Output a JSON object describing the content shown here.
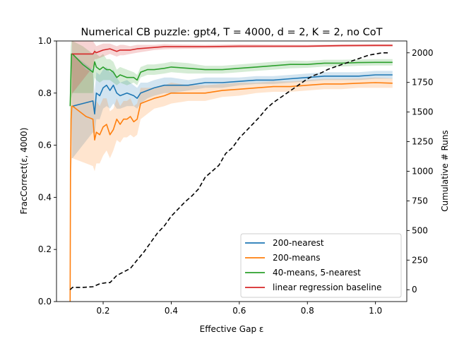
{
  "chart_data": {
    "type": "line",
    "title": "Numerical CB puzzle: gpt4, T = 4000, d = 2, K = 2, no CoT",
    "xlabel": "Effective Gap ε",
    "ylabel": "FracCorrect(ε, 4000)",
    "ylabel_right": "Cumulative # Runs",
    "xlim": [
      0.063,
      1.092
    ],
    "ylim": [
      0,
      1
    ],
    "ylim_right": [
      -100,
      2100
    ],
    "x_ticks": [
      0.2,
      0.4,
      0.6,
      0.8,
      1.0
    ],
    "x_tick_labels": [
      "0.2",
      "0.4",
      "0.6",
      "0.8",
      "1.0"
    ],
    "y_ticks": [
      0.0,
      0.2,
      0.4,
      0.6,
      0.8,
      1.0
    ],
    "y_tick_labels": [
      "0.0",
      "0.2",
      "0.4",
      "0.6",
      "0.8",
      "1.0"
    ],
    "y_right_ticks": [
      0,
      250,
      500,
      750,
      1000,
      1250,
      1500,
      1750,
      2000
    ],
    "y_right_tick_labels": [
      "0",
      "250",
      "500",
      "750",
      "1000",
      "1250",
      "1500",
      "1750",
      "2000"
    ],
    "legend_position": "lower-right",
    "series": [
      {
        "name": "200-nearest",
        "color": "#1f77b4",
        "x": [
          0.108,
          0.11,
          0.14,
          0.17,
          0.175,
          0.18,
          0.19,
          0.2,
          0.21,
          0.22,
          0.23,
          0.24,
          0.25,
          0.27,
          0.29,
          0.3,
          0.31,
          0.33,
          0.35,
          0.38,
          0.4,
          0.45,
          0.5,
          0.55,
          0.6,
          0.65,
          0.7,
          0.75,
          0.8,
          0.85,
          0.9,
          0.95,
          1.0,
          1.05
        ],
        "y": [
          0.75,
          0.75,
          0.76,
          0.77,
          0.72,
          0.8,
          0.79,
          0.82,
          0.83,
          0.81,
          0.83,
          0.8,
          0.79,
          0.8,
          0.79,
          0.78,
          0.8,
          0.81,
          0.82,
          0.83,
          0.83,
          0.83,
          0.84,
          0.84,
          0.845,
          0.85,
          0.85,
          0.855,
          0.86,
          0.865,
          0.865,
          0.865,
          0.87,
          0.87
        ],
        "lower": [
          0.55,
          0.55,
          0.6,
          0.65,
          0.64,
          0.7,
          0.7,
          0.74,
          0.75,
          0.74,
          0.76,
          0.74,
          0.74,
          0.75,
          0.75,
          0.74,
          0.76,
          0.78,
          0.79,
          0.8,
          0.8,
          0.81,
          0.82,
          0.82,
          0.83,
          0.835,
          0.835,
          0.84,
          0.845,
          0.85,
          0.85,
          0.85,
          0.855,
          0.855
        ],
        "upper": [
          0.95,
          0.95,
          0.92,
          0.89,
          0.8,
          0.88,
          0.87,
          0.89,
          0.9,
          0.88,
          0.89,
          0.86,
          0.84,
          0.85,
          0.83,
          0.82,
          0.84,
          0.84,
          0.85,
          0.86,
          0.86,
          0.85,
          0.86,
          0.86,
          0.86,
          0.865,
          0.865,
          0.87,
          0.875,
          0.88,
          0.88,
          0.88,
          0.885,
          0.885
        ]
      },
      {
        "name": "200-means",
        "color": "#ff7f0e",
        "x": [
          0.103,
          0.104,
          0.106,
          0.108,
          0.11,
          0.13,
          0.15,
          0.17,
          0.175,
          0.18,
          0.19,
          0.2,
          0.21,
          0.22,
          0.23,
          0.24,
          0.25,
          0.26,
          0.27,
          0.28,
          0.29,
          0.3,
          0.31,
          0.33,
          0.35,
          0.38,
          0.4,
          0.45,
          0.5,
          0.55,
          0.6,
          0.65,
          0.7,
          0.75,
          0.8,
          0.85,
          0.9,
          0.95,
          1.0,
          1.05
        ],
        "y": [
          0.0,
          0.5,
          0.7,
          0.75,
          0.75,
          0.73,
          0.71,
          0.7,
          0.62,
          0.65,
          0.64,
          0.67,
          0.68,
          0.64,
          0.66,
          0.7,
          0.68,
          0.7,
          0.7,
          0.71,
          0.69,
          0.7,
          0.76,
          0.77,
          0.78,
          0.79,
          0.8,
          0.8,
          0.8,
          0.81,
          0.815,
          0.82,
          0.825,
          0.825,
          0.83,
          0.835,
          0.835,
          0.838,
          0.84,
          0.838
        ],
        "lower": [
          0.0,
          0.2,
          0.5,
          0.55,
          0.55,
          0.54,
          0.53,
          0.52,
          0.5,
          0.53,
          0.53,
          0.56,
          0.58,
          0.55,
          0.58,
          0.62,
          0.61,
          0.63,
          0.63,
          0.64,
          0.63,
          0.64,
          0.7,
          0.72,
          0.74,
          0.75,
          0.76,
          0.77,
          0.77,
          0.785,
          0.79,
          0.8,
          0.805,
          0.805,
          0.81,
          0.815,
          0.815,
          0.82,
          0.82,
          0.82
        ],
        "upper": [
          0.0,
          0.8,
          0.9,
          0.95,
          0.95,
          0.92,
          0.89,
          0.88,
          0.74,
          0.77,
          0.75,
          0.78,
          0.78,
          0.73,
          0.74,
          0.78,
          0.75,
          0.77,
          0.77,
          0.78,
          0.75,
          0.76,
          0.82,
          0.82,
          0.82,
          0.83,
          0.84,
          0.83,
          0.83,
          0.835,
          0.84,
          0.84,
          0.845,
          0.845,
          0.85,
          0.855,
          0.855,
          0.856,
          0.86,
          0.856
        ]
      },
      {
        "name": "40-means, 5-nearest",
        "color": "#2ca02c",
        "x": [
          0.103,
          0.104,
          0.105,
          0.107,
          0.11,
          0.14,
          0.17,
          0.175,
          0.18,
          0.19,
          0.2,
          0.21,
          0.22,
          0.23,
          0.24,
          0.25,
          0.27,
          0.29,
          0.3,
          0.31,
          0.33,
          0.35,
          0.38,
          0.4,
          0.45,
          0.5,
          0.55,
          0.6,
          0.65,
          0.7,
          0.75,
          0.8,
          0.85,
          0.9,
          0.95,
          1.0,
          1.05
        ],
        "y": [
          0.75,
          0.8,
          0.85,
          0.95,
          0.95,
          0.91,
          0.88,
          0.92,
          0.9,
          0.89,
          0.9,
          0.89,
          0.89,
          0.88,
          0.86,
          0.87,
          0.86,
          0.86,
          0.85,
          0.88,
          0.89,
          0.89,
          0.895,
          0.9,
          0.895,
          0.89,
          0.89,
          0.895,
          0.9,
          0.905,
          0.91,
          0.91,
          0.915,
          0.915,
          0.917,
          0.918,
          0.918
        ],
        "lower": [
          0.6,
          0.65,
          0.7,
          0.78,
          0.8,
          0.8,
          0.8,
          0.86,
          0.85,
          0.84,
          0.85,
          0.85,
          0.85,
          0.84,
          0.83,
          0.84,
          0.83,
          0.84,
          0.83,
          0.86,
          0.87,
          0.87,
          0.875,
          0.88,
          0.875,
          0.875,
          0.875,
          0.88,
          0.885,
          0.89,
          0.895,
          0.897,
          0.902,
          0.902,
          0.905,
          0.906,
          0.906
        ],
        "upper": [
          0.9,
          0.95,
          0.98,
          1.0,
          1.0,
          0.98,
          0.95,
          0.97,
          0.95,
          0.94,
          0.95,
          0.93,
          0.93,
          0.92,
          0.89,
          0.9,
          0.89,
          0.88,
          0.87,
          0.9,
          0.91,
          0.91,
          0.915,
          0.92,
          0.915,
          0.905,
          0.905,
          0.91,
          0.915,
          0.92,
          0.925,
          0.923,
          0.928,
          0.928,
          0.929,
          0.93,
          0.93
        ]
      },
      {
        "name": "linear regression baseline",
        "color": "#d62728",
        "x": [
          0.108,
          0.11,
          0.14,
          0.17,
          0.175,
          0.18,
          0.19,
          0.2,
          0.22,
          0.24,
          0.25,
          0.26,
          0.28,
          0.3,
          0.35,
          0.38,
          0.4,
          0.5,
          0.6,
          0.7,
          0.8,
          0.9,
          1.0,
          1.05
        ],
        "y": [
          0.95,
          0.95,
          0.95,
          0.95,
          0.96,
          0.955,
          0.96,
          0.965,
          0.97,
          0.96,
          0.965,
          0.965,
          0.965,
          0.97,
          0.975,
          0.978,
          0.978,
          0.978,
          0.98,
          0.98,
          0.98,
          0.982,
          0.983,
          0.983
        ],
        "lower": [
          0.8,
          0.8,
          0.85,
          0.9,
          0.93,
          0.93,
          0.935,
          0.94,
          0.95,
          0.94,
          0.945,
          0.945,
          0.95,
          0.955,
          0.965,
          0.968,
          0.969,
          0.971,
          0.973,
          0.974,
          0.975,
          0.977,
          0.978,
          0.978
        ],
        "upper": [
          1.0,
          1.0,
          1.0,
          1.0,
          0.99,
          0.98,
          0.985,
          0.99,
          0.99,
          0.98,
          0.985,
          0.985,
          0.98,
          0.985,
          0.985,
          0.988,
          0.987,
          0.985,
          0.987,
          0.986,
          0.985,
          0.987,
          0.988,
          0.988
        ]
      },
      {
        "name": "Cumulative # Runs",
        "axis": "right",
        "color": "#000000",
        "dashed": true,
        "x": [
          0.103,
          0.11,
          0.14,
          0.17,
          0.19,
          0.21,
          0.22,
          0.24,
          0.26,
          0.28,
          0.3,
          0.32,
          0.34,
          0.36,
          0.38,
          0.4,
          0.42,
          0.44,
          0.46,
          0.48,
          0.5,
          0.52,
          0.54,
          0.56,
          0.58,
          0.6,
          0.62,
          0.64,
          0.66,
          0.68,
          0.7,
          0.72,
          0.74,
          0.76,
          0.78,
          0.8,
          0.82,
          0.84,
          0.86,
          0.88,
          0.9,
          0.92,
          0.94,
          0.96,
          0.98,
          1.0,
          1.02,
          1.04
        ],
        "y": [
          0,
          20,
          20,
          25,
          50,
          60,
          60,
          120,
          150,
          180,
          250,
          320,
          400,
          480,
          540,
          620,
          680,
          740,
          790,
          850,
          950,
          1000,
          1050,
          1150,
          1200,
          1280,
          1340,
          1400,
          1460,
          1530,
          1580,
          1620,
          1660,
          1700,
          1740,
          1780,
          1810,
          1830,
          1860,
          1880,
          1900,
          1920,
          1940,
          1960,
          1980,
          1990,
          2000,
          2000
        ]
      }
    ]
  }
}
